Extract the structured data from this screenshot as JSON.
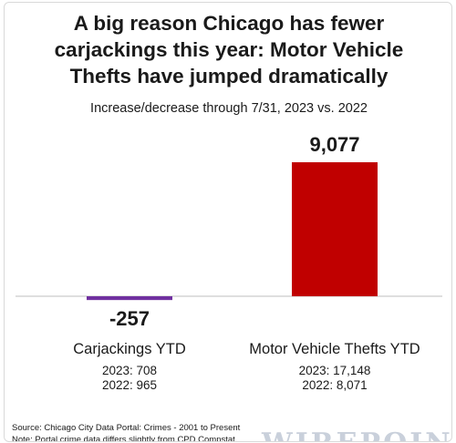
{
  "chart_data": {
    "type": "bar",
    "title": "A big reason Chicago has fewer carjackings this year: Motor Vehicle Thefts have jumped dramatically",
    "title_lines": [
      "A big reason Chicago has fewer",
      "carjackings this year: Motor Vehicle",
      "Thefts have jumped dramatically"
    ],
    "subtitle": "Increase/decrease through 7/31, 2023 vs. 2022",
    "categories": [
      "Carjackings YTD",
      "Motor Vehicle Thefts YTD"
    ],
    "values": [
      -257,
      9077
    ],
    "value_labels": [
      "-257",
      "9,077"
    ],
    "colors": [
      "#7030a0",
      "#c00000"
    ],
    "details": [
      [
        "2023:  708",
        "2022: 965"
      ],
      [
        "2023: 17,148",
        "2022: 8,071"
      ]
    ],
    "ylim": [
      -300,
      9077
    ],
    "grid": false,
    "legend": "none"
  },
  "source_lines": [
    "Source: Chicago City Data Portal: Crimes - 2001 to Present",
    "Note: Portal crime data differs slightly from CPD Compstat"
  ],
  "logo_text": "WIREPOINTS"
}
